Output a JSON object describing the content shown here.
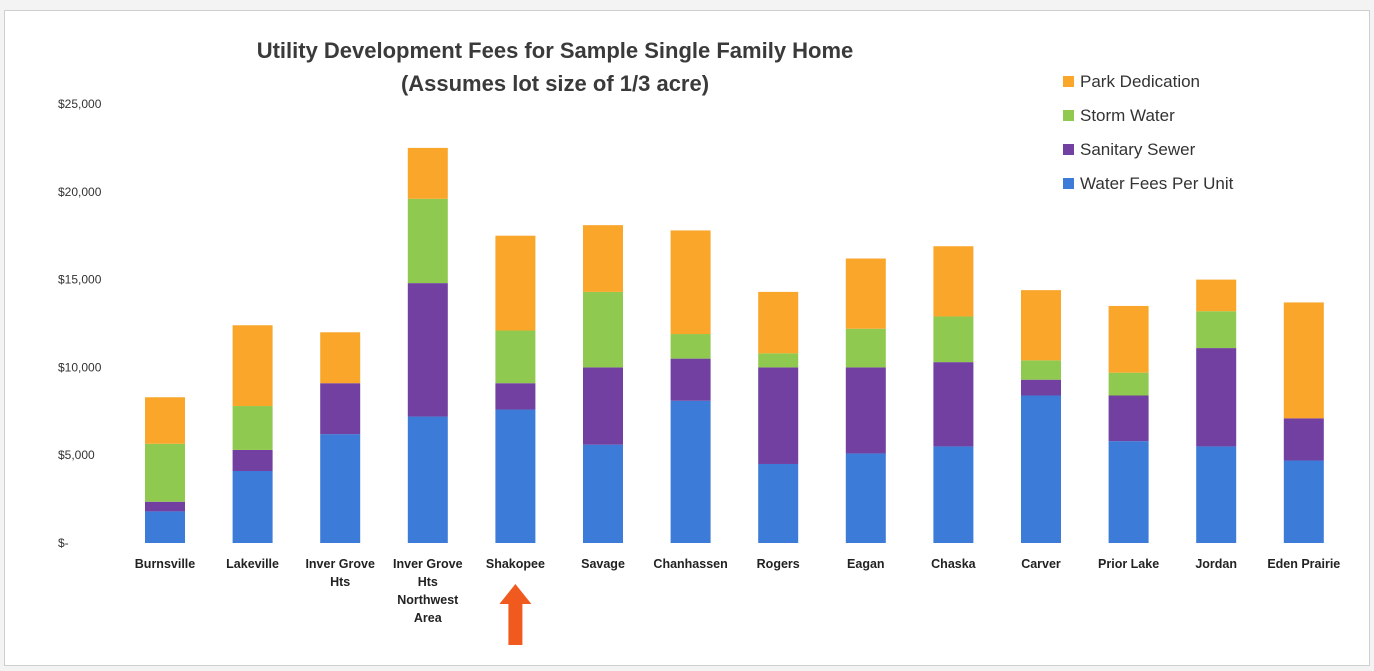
{
  "chart_data": {
    "type": "bar",
    "stacked": true,
    "title": "Utility Development Fees for Sample Single Family Home",
    "subtitle": "(Assumes lot size of 1/3 acre)",
    "ylim": [
      0,
      25000
    ],
    "yticks": [
      {
        "value": 0,
        "label": "$-"
      },
      {
        "value": 5000,
        "label": "$5,000"
      },
      {
        "value": 10000,
        "label": "$10,000"
      },
      {
        "value": 15000,
        "label": "$15,000"
      },
      {
        "value": 20000,
        "label": "$20,000"
      },
      {
        "value": 25000,
        "label": "$25,000"
      }
    ],
    "grid": false,
    "legend_position": "top-right",
    "categories": [
      [
        "Burnsville"
      ],
      [
        "Lakeville"
      ],
      [
        "Inver Grove",
        "Hts"
      ],
      [
        "Inver Grove",
        "Hts",
        "Northwest",
        "Area"
      ],
      [
        "Shakopee"
      ],
      [
        "Savage"
      ],
      [
        "Chanhassen"
      ],
      [
        "Rogers"
      ],
      [
        "Eagan"
      ],
      [
        "Chaska"
      ],
      [
        "Carver"
      ],
      [
        "Prior Lake"
      ],
      [
        "Jordan"
      ],
      [
        "Eden Prairie"
      ]
    ],
    "series": [
      {
        "name": "Water Fees Per Unit",
        "color": "#3d7bd8",
        "values": [
          1800,
          4100,
          6200,
          7200,
          7600,
          5600,
          8100,
          4500,
          5100,
          5500,
          8400,
          5800,
          5500,
          4700
        ]
      },
      {
        "name": "Sanitary Sewer",
        "color": "#7140a0",
        "values": [
          550,
          1200,
          2900,
          7600,
          1500,
          4400,
          2400,
          5500,
          4900,
          4800,
          900,
          2600,
          5600,
          2400
        ]
      },
      {
        "name": "Storm Water",
        "color": "#90c94f",
        "values": [
          3300,
          2500,
          0,
          4800,
          3000,
          4300,
          1400,
          800,
          2200,
          2600,
          1100,
          1300,
          2100,
          0
        ]
      },
      {
        "name": "Park Dedication",
        "color": "#f9a62b",
        "values": [
          2650,
          4600,
          2900,
          2900,
          5400,
          3800,
          5900,
          3500,
          4000,
          4000,
          4000,
          3800,
          1800,
          6600
        ]
      }
    ],
    "legend_order": [
      "Park Dedication",
      "Storm Water",
      "Sanitary Sewer",
      "Water Fees Per Unit"
    ],
    "highlight": {
      "category_index": 4,
      "marker": "arrow",
      "color": "#f05a1e"
    }
  }
}
